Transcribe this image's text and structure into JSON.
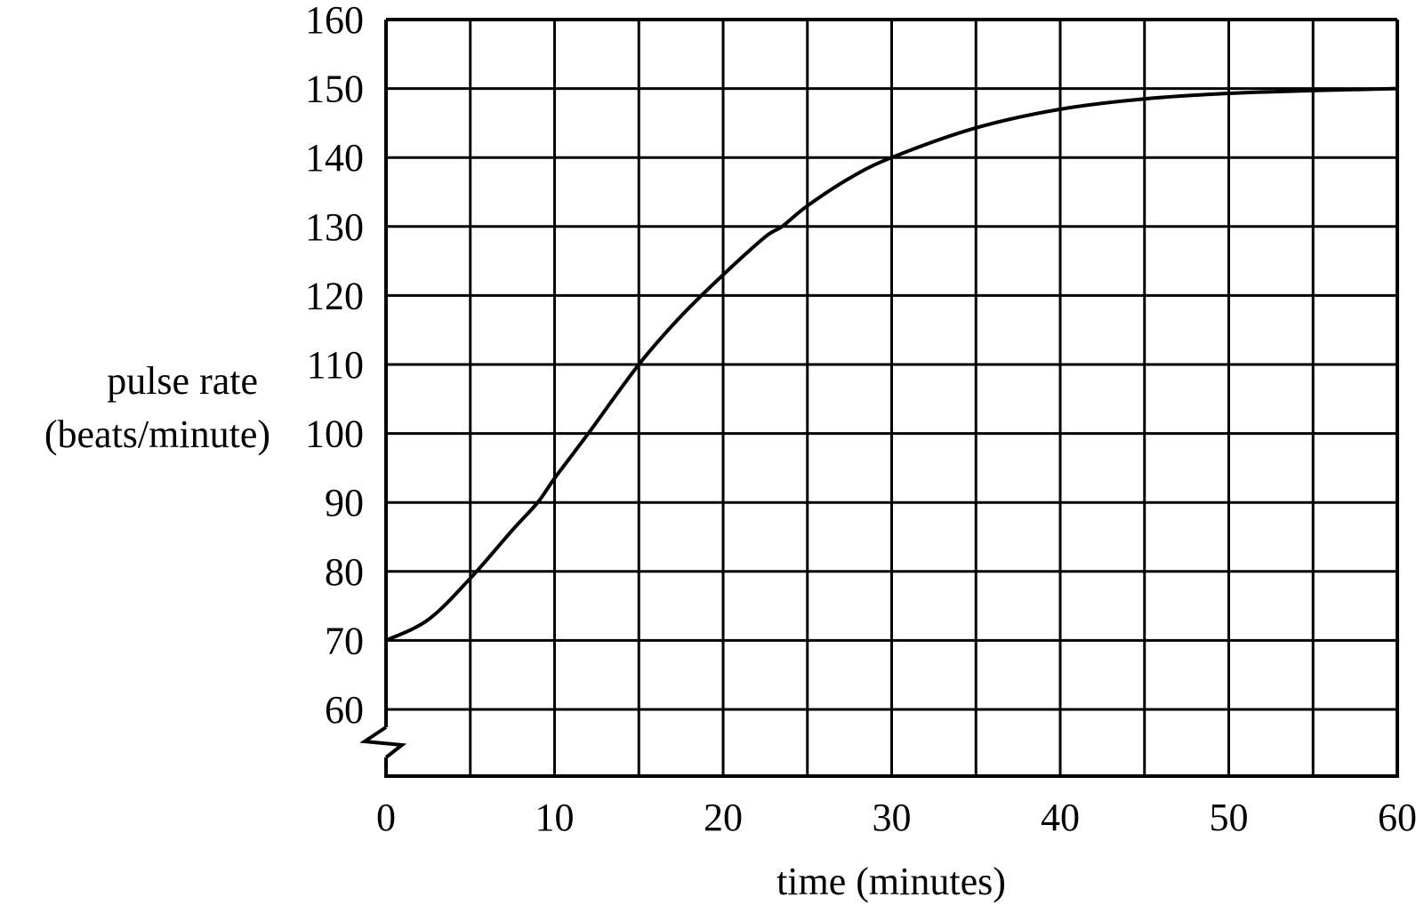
{
  "chart_data": {
    "type": "line",
    "title": "",
    "xlabel": "time (minutes)",
    "ylabel": [
      "pulse rate",
      "(beats/minute)"
    ],
    "xlim": [
      0,
      60
    ],
    "ylim": [
      60,
      160
    ],
    "y_axis_break": true,
    "grid": true,
    "legend": null,
    "x_ticks": [
      0,
      10,
      20,
      30,
      40,
      50,
      60
    ],
    "y_ticks": [
      60,
      70,
      80,
      90,
      100,
      110,
      120,
      130,
      140,
      150,
      160
    ],
    "series": [
      {
        "name": "pulse rate",
        "x": [
          0,
          2.5,
          5,
          7.5,
          9,
          10,
          12,
          15,
          17.5,
          20,
          22.5,
          23.5,
          25,
          27.5,
          30,
          35,
          40,
          45,
          50,
          55,
          60
        ],
        "values": [
          70,
          73,
          79,
          86,
          90,
          93.5,
          100,
          110,
          117,
          123,
          128.5,
          130,
          133,
          137,
          140,
          144.3,
          147,
          148.5,
          149.3,
          149.7,
          150
        ]
      }
    ],
    "colors": {
      "line": "#000000",
      "grid": "#000000",
      "background": "#ffffff"
    }
  },
  "axes": {
    "x_tick_labels": [
      "0",
      "10",
      "20",
      "30",
      "40",
      "50",
      "60"
    ],
    "y_tick_labels": [
      "60",
      "70",
      "80",
      "90",
      "100",
      "110",
      "120",
      "130",
      "140",
      "150",
      "160"
    ],
    "x_title": "time (minutes)",
    "y_title_line1": "pulse rate",
    "y_title_line2": "(beats/minute)"
  }
}
